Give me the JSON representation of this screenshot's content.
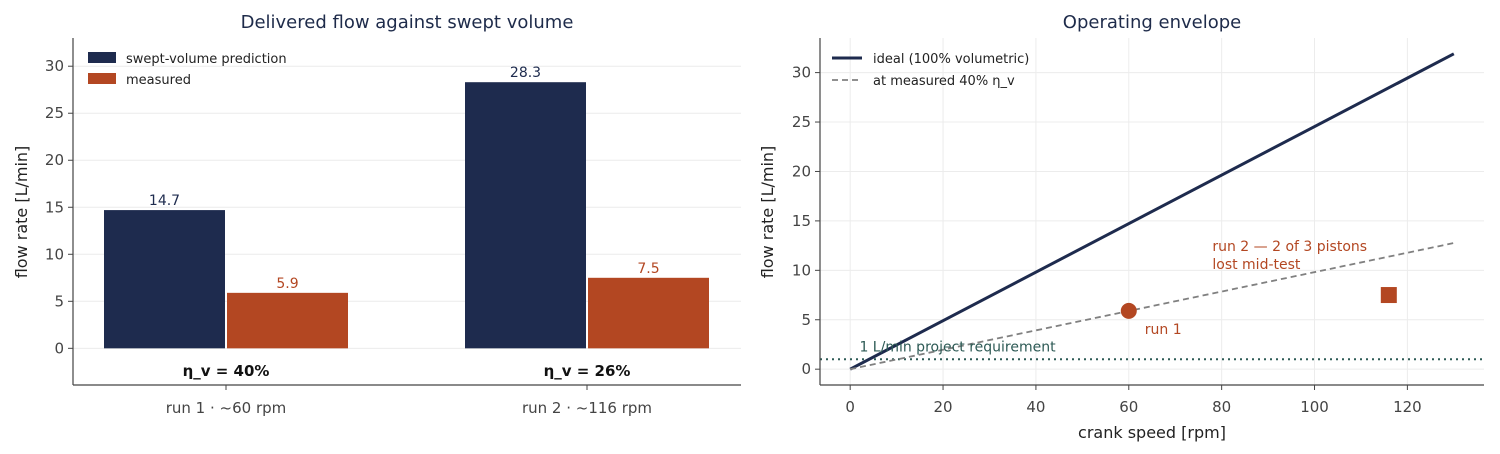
{
  "colors": {
    "navy": "#1e2b4e",
    "rust": "#b34722",
    "gray": "#808080",
    "teal": "#2d5a55",
    "axis": "#444444",
    "grid": "#ececec"
  },
  "chart_data": [
    {
      "type": "bar",
      "title": "Delivered flow against swept volume",
      "xlabel": "",
      "ylabel": "flow rate [L/min]",
      "ylim": [
        -3.9,
        33
      ],
      "yticks": [
        0,
        5,
        10,
        15,
        20,
        25,
        30
      ],
      "grid": true,
      "legend_position": "top-left",
      "categories": [
        "run 1  ·  ~60 rpm",
        "run 2  ·  ~116 rpm"
      ],
      "series": [
        {
          "name": "swept-volume prediction",
          "values": [
            14.7,
            28.3
          ],
          "labels": [
            "14.7",
            "28.3"
          ],
          "color": "#1e2b4e"
        },
        {
          "name": "measured",
          "values": [
            5.9,
            7.5
          ],
          "labels": [
            "5.9",
            "7.5"
          ],
          "color": "#b34722"
        }
      ],
      "annotations": [
        "η_v = 40%",
        "η_v = 26%"
      ]
    },
    {
      "type": "line",
      "title": "Operating envelope",
      "xlabel": "crank speed [rpm]",
      "ylabel": "flow rate [L/min]",
      "xlim": [
        -6.5,
        136.5
      ],
      "ylim": [
        -1.6,
        33.5
      ],
      "xticks": [
        0,
        20,
        40,
        60,
        80,
        100,
        120
      ],
      "yticks": [
        0,
        5,
        10,
        15,
        20,
        25,
        30
      ],
      "grid": true,
      "legend_position": "top-left",
      "series": [
        {
          "name": "ideal (100% volumetric)",
          "x": [
            0,
            130
          ],
          "y": [
            0,
            31.9
          ],
          "style": "solid",
          "color": "#1e2b4e"
        },
        {
          "name": "at measured 40% η_v",
          "x": [
            0,
            130
          ],
          "y": [
            0,
            12.76
          ],
          "style": "dashed",
          "color": "#808080"
        }
      ],
      "points": [
        {
          "label": "run 1",
          "x": 60,
          "y": 5.9,
          "marker": "circle",
          "color": "#b34722"
        },
        {
          "label": "run 2 — 2 of 3 pistons lost mid-test",
          "x": 116,
          "y": 7.5,
          "marker": "square",
          "color": "#b34722"
        }
      ],
      "reference_line": {
        "label": "1 L/min project requirement",
        "y": 1,
        "style": "dotted",
        "color": "#2d5a55"
      },
      "point_labels": {
        "run1": "run 1",
        "run2_line1": "run 2 — 2 of 3 pistons",
        "run2_line2": "lost mid-test"
      }
    }
  ]
}
